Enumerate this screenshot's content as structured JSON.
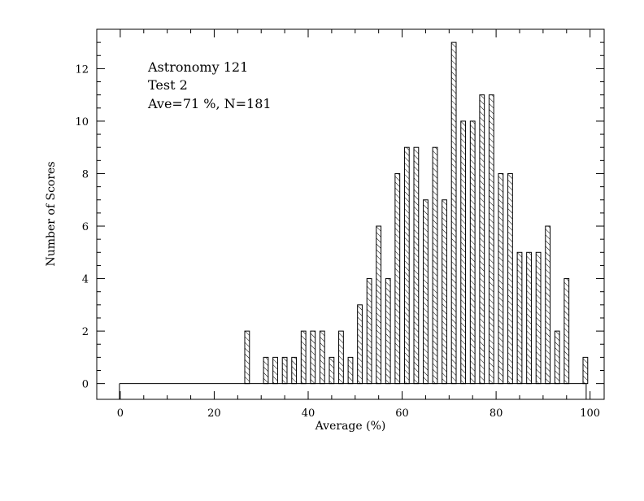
{
  "chart_data": {
    "type": "bar",
    "xlabel": "Average (%)",
    "ylabel": "Number of Scores",
    "xlim": [
      -5,
      103
    ],
    "ylim": [
      -0.6,
      13.5
    ],
    "x_ticks": [
      "0",
      "20",
      "40",
      "60",
      "80",
      "100"
    ],
    "y_ticks": [
      "0",
      "2",
      "4",
      "6",
      "8",
      "10",
      "12"
    ],
    "annotations": [
      "Astronomy 121",
      "Test 2",
      "Ave=71 %, N=181"
    ],
    "bin_width": 1,
    "bins": [
      {
        "x": 27,
        "value": 2
      },
      {
        "x": 31,
        "value": 1
      },
      {
        "x": 33,
        "value": 1
      },
      {
        "x": 35,
        "value": 1
      },
      {
        "x": 37,
        "value": 1
      },
      {
        "x": 39,
        "value": 2
      },
      {
        "x": 41,
        "value": 2
      },
      {
        "x": 43,
        "value": 2
      },
      {
        "x": 45,
        "value": 1
      },
      {
        "x": 47,
        "value": 2
      },
      {
        "x": 49,
        "value": 1
      },
      {
        "x": 51,
        "value": 3
      },
      {
        "x": 53,
        "value": 4
      },
      {
        "x": 55,
        "value": 6
      },
      {
        "x": 57,
        "value": 4
      },
      {
        "x": 59,
        "value": 8
      },
      {
        "x": 61,
        "value": 9
      },
      {
        "x": 63,
        "value": 9
      },
      {
        "x": 65,
        "value": 7
      },
      {
        "x": 67,
        "value": 9
      },
      {
        "x": 69,
        "value": 7
      },
      {
        "x": 71,
        "value": 13
      },
      {
        "x": 73,
        "value": 10
      },
      {
        "x": 75,
        "value": 10
      },
      {
        "x": 77,
        "value": 11
      },
      {
        "x": 79,
        "value": 11
      },
      {
        "x": 81,
        "value": 8
      },
      {
        "x": 83,
        "value": 8
      },
      {
        "x": 85,
        "value": 5
      },
      {
        "x": 87,
        "value": 5
      },
      {
        "x": 89,
        "value": 5
      },
      {
        "x": 91,
        "value": 6
      },
      {
        "x": 93,
        "value": 2
      },
      {
        "x": 95,
        "value": 4
      },
      {
        "x": 99,
        "value": 1
      }
    ],
    "baseline": {
      "from": 0,
      "to": 99,
      "value": 0
    },
    "grid": false,
    "colors": {
      "bar_fill": "hatched",
      "stroke": "#000000",
      "background": "#ffffff"
    }
  }
}
